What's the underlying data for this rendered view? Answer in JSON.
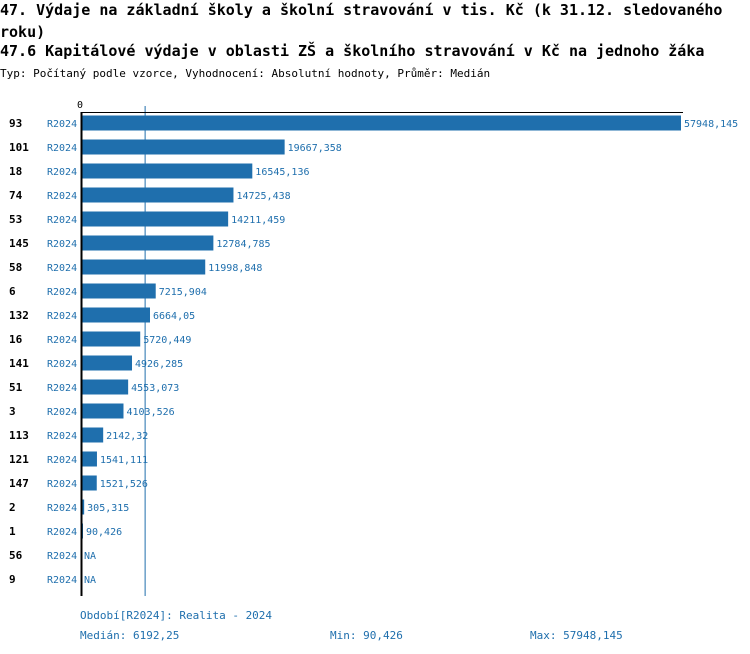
{
  "title_line1": "47. Výdaje na základní školy a školní stravování v tis. Kč (k 31.12. sledovaného roku)",
  "title_line2": "47.6 Kapitálové výdaje v oblasti ZŠ a školního stravování v Kč na jednoho žáka",
  "subtitle": "Typ: Počítaný podle vzorce, Vyhodnocení: Absolutní hodnoty, Průměr: Medián",
  "footer": {
    "period": "Období[R2024]: Realita - 2024",
    "median": "Medián: 6192,25",
    "min": "Min: 90,426",
    "max": "Max: 57948,145"
  },
  "colors": {
    "bar": "#1f6fad",
    "text_accent": "#1f6fad",
    "axis": "#000000"
  },
  "chart_data": {
    "type": "bar",
    "orientation": "horizontal",
    "axis_zero_label": "0",
    "median": 6192.25,
    "min": 90.426,
    "max": 57948.145,
    "rows": [
      {
        "id": "93",
        "period": "R2024",
        "value": 57948.145,
        "label": "57948,145"
      },
      {
        "id": "101",
        "period": "R2024",
        "value": 19667.358,
        "label": "19667,358"
      },
      {
        "id": "18",
        "period": "R2024",
        "value": 16545.136,
        "label": "16545,136"
      },
      {
        "id": "74",
        "period": "R2024",
        "value": 14725.438,
        "label": "14725,438"
      },
      {
        "id": "53",
        "period": "R2024",
        "value": 14211.459,
        "label": "14211,459"
      },
      {
        "id": "145",
        "period": "R2024",
        "value": 12784.785,
        "label": "12784,785"
      },
      {
        "id": "58",
        "period": "R2024",
        "value": 11998.848,
        "label": "11998,848"
      },
      {
        "id": "6",
        "period": "R2024",
        "value": 7215.904,
        "label": "7215,904"
      },
      {
        "id": "132",
        "period": "R2024",
        "value": 6664.05,
        "label": "6664,05"
      },
      {
        "id": "16",
        "period": "R2024",
        "value": 5720.449,
        "label": "5720,449"
      },
      {
        "id": "141",
        "period": "R2024",
        "value": 4926.285,
        "label": "4926,285"
      },
      {
        "id": "51",
        "period": "R2024",
        "value": 4553.073,
        "label": "4553,073"
      },
      {
        "id": "3",
        "period": "R2024",
        "value": 4103.526,
        "label": "4103,526"
      },
      {
        "id": "113",
        "period": "R2024",
        "value": 2142.32,
        "label": "2142,32"
      },
      {
        "id": "121",
        "period": "R2024",
        "value": 1541.111,
        "label": "1541,111"
      },
      {
        "id": "147",
        "period": "R2024",
        "value": 1521.526,
        "label": "1521,526"
      },
      {
        "id": "2",
        "period": "R2024",
        "value": 305.315,
        "label": "305,315"
      },
      {
        "id": "1",
        "period": "R2024",
        "value": 90.426,
        "label": "90,426"
      },
      {
        "id": "56",
        "period": "R2024",
        "value": null,
        "label": "NA"
      },
      {
        "id": "9",
        "period": "R2024",
        "value": null,
        "label": "NA"
      }
    ]
  }
}
